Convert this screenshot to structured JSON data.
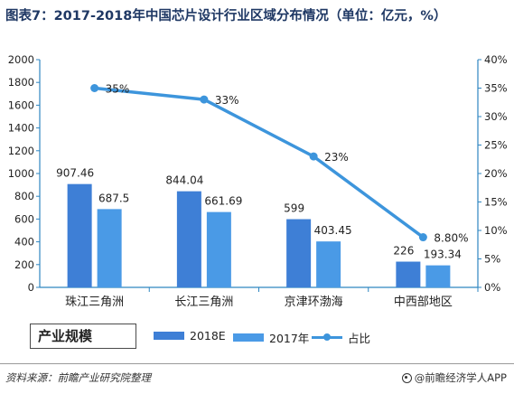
{
  "title": "图表7：2017-2018年中国芯片设计行业区域分布情况（单位：亿元，%）",
  "chart_data": {
    "type": "bar",
    "categories": [
      "珠江三角洲",
      "长江三角洲",
      "京津环渤海",
      "中西部地区"
    ],
    "series": [
      {
        "name": "2018E",
        "type": "bar",
        "axis": "left",
        "values": [
          907.46,
          844.04,
          599,
          226
        ],
        "labels": [
          "907.46",
          "844.04",
          "599",
          "226"
        ],
        "color": "#3e7fd6"
      },
      {
        "name": "2017年",
        "type": "bar",
        "axis": "left",
        "values": [
          687.5,
          661.69,
          403.45,
          193.34
        ],
        "labels": [
          "687.5",
          "661.69",
          "403.45",
          "193.34"
        ],
        "color": "#4a9ae6"
      },
      {
        "name": "占比",
        "type": "line",
        "axis": "right",
        "values": [
          35,
          33,
          23,
          8.8
        ],
        "labels": [
          "35%",
          "33%",
          "23%",
          "8.80%"
        ],
        "color": "#3d95dc"
      }
    ],
    "y_left": {
      "min": 0,
      "max": 2000,
      "step": 200,
      "ticks": [
        "0",
        "200",
        "400",
        "600",
        "800",
        "1000",
        "1200",
        "1400",
        "1600",
        "1800",
        "2000"
      ]
    },
    "y_right": {
      "min": 0,
      "max": 40,
      "step": 5,
      "ticks": [
        "0%",
        "5%",
        "10%",
        "15%",
        "20%",
        "25%",
        "30%",
        "35%",
        "40%"
      ]
    },
    "grid": false,
    "legend_position": "bottom"
  },
  "legend": {
    "group_title": "产业规模",
    "items": [
      {
        "label": "2018E",
        "color": "#3e7fd6"
      },
      {
        "label": "2017年",
        "color": "#4a9ae6"
      },
      {
        "label": "占比",
        "color": "#3d95dc"
      }
    ]
  },
  "footer": {
    "source": "资料来源：前瞻产业研究院整理",
    "brand": "@前瞻经济学人APP"
  },
  "axis_color": "#2e86c1",
  "label_color": "#222222"
}
